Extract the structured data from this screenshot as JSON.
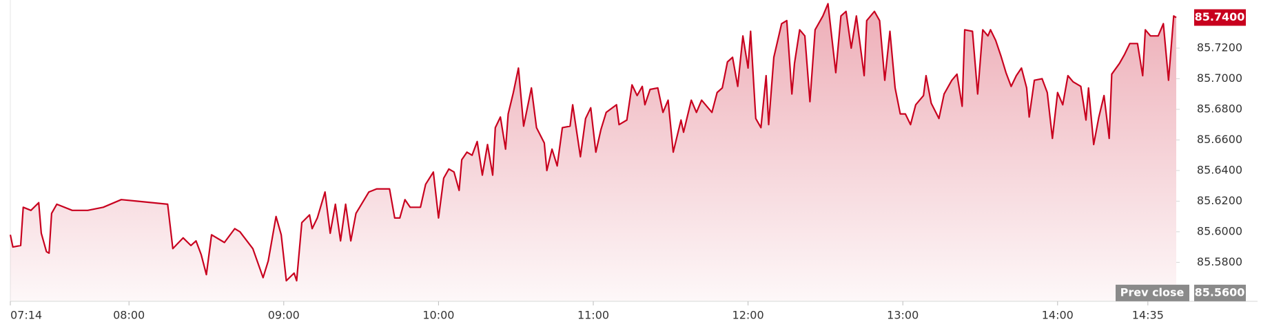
{
  "chart_data": {
    "type": "area",
    "color": "#c8001e",
    "grid": false,
    "x": [
      "07:14",
      "07:15",
      "07:18",
      "07:19",
      "07:22",
      "07:25",
      "07:26",
      "07:28",
      "07:29",
      "07:30",
      "07:32",
      "07:38",
      "07:44",
      "07:50",
      "07:57",
      "08:03",
      "08:09",
      "08:15",
      "08:17",
      "08:21",
      "08:24",
      "08:26",
      "08:28",
      "08:30",
      "08:32",
      "08:37",
      "08:41",
      "08:43",
      "08:48",
      "08:52",
      "08:54",
      "08:57",
      "08:59",
      "09:01",
      "09:04",
      "09:05",
      "09:07",
      "09:10",
      "09:11",
      "09:13",
      "09:16",
      "09:18",
      "09:20",
      "09:22",
      "09:24",
      "09:26",
      "09:28",
      "09:33",
      "09:36",
      "09:41",
      "09:43",
      "09:45",
      "09:47",
      "09:49",
      "09:53",
      "09:55",
      "09:58",
      "10:00",
      "10:02",
      "10:04",
      "10:06",
      "10:08",
      "10:09",
      "10:11",
      "10:13",
      "10:15",
      "10:17",
      "10:19",
      "10:21",
      "10:22",
      "10:24",
      "10:26",
      "10:27",
      "10:29",
      "10:31",
      "10:33",
      "10:36",
      "10:38",
      "10:41",
      "10:42",
      "10:44",
      "10:46",
      "10:48",
      "10:51",
      "10:52",
      "10:55",
      "10:57",
      "10:59",
      "11:01",
      "11:03",
      "11:05",
      "11:09",
      "11:10",
      "11:13",
      "11:15",
      "11:17",
      "11:19",
      "11:20",
      "11:22",
      "11:25",
      "11:27",
      "11:29",
      "11:31",
      "11:34",
      "11:35",
      "11:38",
      "11:40",
      "11:42",
      "11:46",
      "11:48",
      "11:50",
      "11:52",
      "11:54",
      "11:56",
      "11:58",
      "12:00",
      "12:01",
      "12:03",
      "12:05",
      "12:07",
      "12:08",
      "12:10",
      "12:13",
      "12:15",
      "12:17",
      "12:18",
      "12:20",
      "12:22",
      "12:24",
      "12:26",
      "12:29",
      "12:31",
      "12:34",
      "12:36",
      "12:38",
      "12:40",
      "12:42",
      "12:45",
      "12:46",
      "12:49",
      "12:51",
      "12:53",
      "12:55",
      "12:57",
      "12:59",
      "13:01",
      "13:03",
      "13:05",
      "13:08",
      "13:09",
      "13:11",
      "13:14",
      "13:16",
      "13:19",
      "13:21",
      "13:23",
      "13:24",
      "13:27",
      "13:29",
      "13:31",
      "13:33",
      "13:34",
      "13:36",
      "13:38",
      "13:40",
      "13:42",
      "13:44",
      "13:46",
      "13:48",
      "13:49",
      "13:51",
      "13:54",
      "13:56",
      "13:58",
      "14:00",
      "14:02",
      "14:04",
      "14:06",
      "14:09",
      "14:11",
      "14:12",
      "14:14",
      "14:16",
      "14:18",
      "14:20",
      "14:21",
      "14:24",
      "14:26",
      "14:28",
      "14:31",
      "14:33",
      "14:34",
      "14:36",
      "14:39",
      "14:41",
      "14:43",
      "14:45",
      "14:46"
    ],
    "values": [
      85.598,
      85.59,
      85.591,
      85.616,
      85.614,
      85.619,
      85.599,
      85.587,
      85.586,
      85.612,
      85.618,
      85.614,
      85.614,
      85.616,
      85.621,
      85.62,
      85.619,
      85.618,
      85.589,
      85.596,
      85.591,
      85.594,
      85.585,
      85.572,
      85.598,
      85.593,
      85.602,
      85.6,
      85.589,
      85.57,
      85.581,
      85.61,
      85.598,
      85.568,
      85.573,
      85.568,
      85.606,
      85.611,
      85.602,
      85.609,
      85.626,
      85.599,
      85.618,
      85.594,
      85.618,
      85.594,
      85.612,
      85.626,
      85.628,
      85.628,
      85.609,
      85.609,
      85.621,
      85.616,
      85.616,
      85.631,
      85.639,
      85.609,
      85.635,
      85.641,
      85.639,
      85.627,
      85.647,
      85.652,
      85.65,
      85.659,
      85.637,
      85.657,
      85.637,
      85.668,
      85.675,
      85.654,
      85.677,
      85.691,
      85.707,
      85.669,
      85.694,
      85.668,
      85.658,
      85.64,
      85.654,
      85.643,
      85.668,
      85.669,
      85.683,
      85.649,
      85.674,
      85.681,
      85.652,
      85.667,
      85.678,
      85.683,
      85.67,
      85.673,
      85.696,
      85.689,
      85.695,
      85.683,
      85.693,
      85.694,
      85.678,
      85.686,
      85.652,
      85.673,
      85.665,
      85.686,
      85.678,
      85.686,
      85.678,
      85.691,
      85.694,
      85.711,
      85.714,
      85.695,
      85.728,
      85.707,
      85.731,
      85.674,
      85.668,
      85.702,
      85.67,
      85.714,
      85.736,
      85.738,
      85.69,
      85.71,
      85.732,
      85.728,
      85.685,
      85.732,
      85.741,
      85.749,
      85.704,
      85.741,
      85.744,
      85.72,
      85.741,
      85.702,
      85.738,
      85.744,
      85.738,
      85.699,
      85.731,
      85.694,
      85.677,
      85.677,
      85.67,
      85.683,
      85.689,
      85.702,
      85.684,
      85.674,
      85.69,
      85.699,
      85.703,
      85.682,
      85.732,
      85.731,
      85.69,
      85.732,
      85.728,
      85.732,
      85.725,
      85.715,
      85.704,
      85.695,
      85.702,
      85.707,
      85.694,
      85.675,
      85.699,
      85.7,
      85.691,
      85.661,
      85.691,
      85.683,
      85.702,
      85.698,
      85.695,
      85.673,
      85.694,
      85.657,
      85.675,
      85.689,
      85.661,
      85.703,
      85.71,
      85.716,
      85.723,
      85.723,
      85.702,
      85.732,
      85.728,
      85.728,
      85.736,
      85.699,
      85.741,
      85.74
    ],
    "xlim": [
      "07:14",
      "14:46"
    ],
    "xticks": [
      "07:14",
      "08:00",
      "09:00",
      "10:00",
      "11:00",
      "12:00",
      "13:00",
      "14:00",
      "14:35"
    ],
    "ylim": [
      85.555,
      85.751
    ],
    "yticks": [
      {
        "value": 85.58,
        "label": "85.5800"
      },
      {
        "value": 85.6,
        "label": "85.6000"
      },
      {
        "value": 85.62,
        "label": "85.6200"
      },
      {
        "value": 85.64,
        "label": "85.6400"
      },
      {
        "value": 85.66,
        "label": "85.6600"
      },
      {
        "value": 85.68,
        "label": "85.6800"
      },
      {
        "value": 85.7,
        "label": "85.7000"
      },
      {
        "value": 85.72,
        "label": "85.7200"
      }
    ],
    "last_price": {
      "value": 85.74,
      "label": "85.7400"
    },
    "prev_close": {
      "text": "Prev close",
      "value": 85.56,
      "label": "85.5600"
    }
  }
}
